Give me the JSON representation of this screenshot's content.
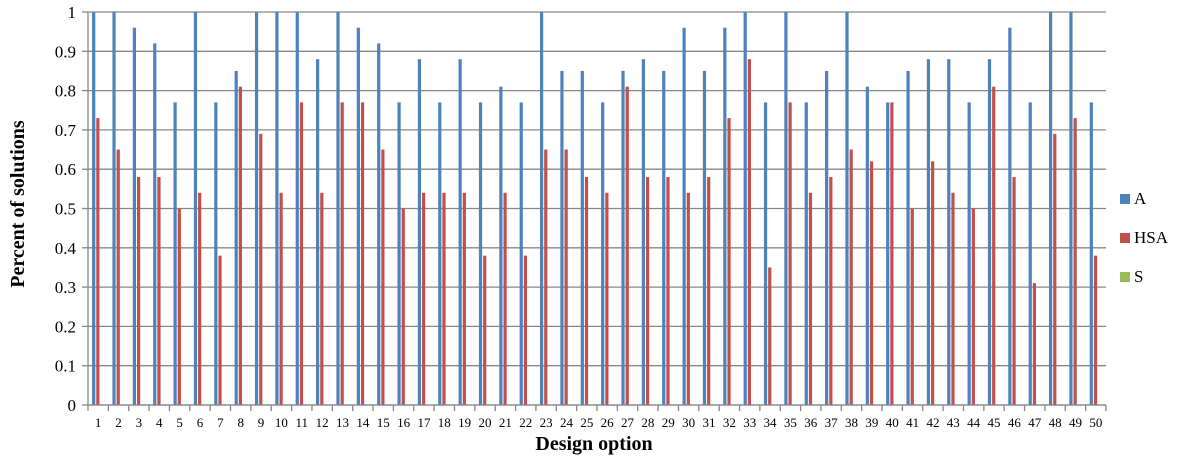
{
  "chart_data": {
    "type": "bar",
    "title": "",
    "xlabel": "Design option",
    "ylabel": "Percent of solutions",
    "ylim": [
      0,
      1
    ],
    "yticks": [
      "0",
      "0.1",
      "0.2",
      "0.3",
      "0.4",
      "0.5",
      "0.6",
      "0.7",
      "0.8",
      "0.9",
      "1"
    ],
    "grid": true,
    "legend_position": "right",
    "categories": [
      "1",
      "2",
      "3",
      "4",
      "5",
      "6",
      "7",
      "8",
      "9",
      "10",
      "11",
      "12",
      "13",
      "14",
      "15",
      "16",
      "17",
      "18",
      "19",
      "20",
      "21",
      "22",
      "23",
      "24",
      "25",
      "26",
      "27",
      "28",
      "29",
      "30",
      "31",
      "32",
      "33",
      "34",
      "35",
      "36",
      "37",
      "38",
      "39",
      "40",
      "41",
      "42",
      "43",
      "44",
      "45",
      "46",
      "47",
      "48",
      "49",
      "50"
    ],
    "series": [
      {
        "name": "A",
        "color": "#4F81BD",
        "values": [
          1.0,
          1.0,
          0.96,
          0.92,
          0.77,
          1.0,
          0.77,
          0.85,
          1.0,
          1.0,
          1.0,
          0.88,
          1.0,
          0.96,
          0.92,
          0.77,
          0.88,
          0.77,
          0.88,
          0.77,
          0.81,
          0.77,
          1.0,
          0.85,
          0.85,
          0.77,
          0.85,
          0.88,
          0.85,
          0.96,
          0.85,
          0.96,
          1.0,
          0.77,
          1.0,
          0.77,
          0.85,
          1.0,
          0.81,
          0.77,
          0.85,
          0.88,
          0.88,
          0.77,
          0.88,
          0.96,
          0.77,
          1.0,
          1.0,
          0.77
        ]
      },
      {
        "name": "HSA",
        "color": "#C0504D",
        "values": [
          0.73,
          0.65,
          0.58,
          0.58,
          0.5,
          0.54,
          0.38,
          0.81,
          0.69,
          0.54,
          0.77,
          0.54,
          0.77,
          0.77,
          0.65,
          0.5,
          0.54,
          0.54,
          0.54,
          0.38,
          0.54,
          0.38,
          0.65,
          0.65,
          0.58,
          0.54,
          0.81,
          0.58,
          0.58,
          0.54,
          0.58,
          0.73,
          0.88,
          0.35,
          0.77,
          0.54,
          0.58,
          0.65,
          0.62,
          0.77,
          0.5,
          0.62,
          0.54,
          0.5,
          0.81,
          0.58,
          0.31,
          0.69,
          0.73,
          0.38
        ]
      },
      {
        "name": "S",
        "color": "#9BBB59",
        "values": [
          0,
          0,
          0,
          0,
          0,
          0,
          0,
          0,
          0,
          0,
          0,
          0,
          0,
          0,
          0,
          0,
          0,
          0,
          0,
          0,
          0,
          0,
          0,
          0,
          0,
          0,
          0,
          0,
          0,
          0,
          0,
          0,
          0,
          0,
          0,
          0,
          0,
          0,
          0,
          0,
          0,
          0,
          0,
          0,
          0,
          0,
          0,
          0,
          0,
          0
        ]
      }
    ]
  }
}
